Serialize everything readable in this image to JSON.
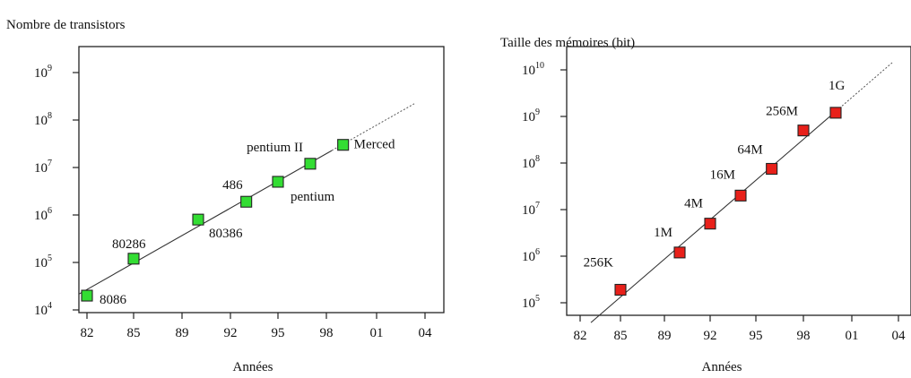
{
  "chart_data": [
    {
      "type": "scatter",
      "title": "Nombre de transistors",
      "xlabel": "Années",
      "ylabel": "",
      "y_scale": "log",
      "x_ticks": [
        "82",
        "85",
        "89",
        "92",
        "95",
        "98",
        "01",
        "04"
      ],
      "y_ticks": [
        {
          "base": "10",
          "exp": "4"
        },
        {
          "base": "10",
          "exp": "5"
        },
        {
          "base": "10",
          "exp": "6"
        },
        {
          "base": "10",
          "exp": "7"
        },
        {
          "base": "10",
          "exp": "8"
        },
        {
          "base": "10",
          "exp": "9"
        }
      ],
      "ylim": [
        10000,
        2000000000
      ],
      "points": [
        {
          "label": "8086",
          "x": 1982,
          "y": 20000
        },
        {
          "label": "80286",
          "x": 1985,
          "y": 120000
        },
        {
          "label": "80386",
          "x": 1989,
          "y": 800000
        },
        {
          "label": "486",
          "x": 1992,
          "y": 1900000
        },
        {
          "label": "pentium",
          "x": 1994,
          "y": 5000000
        },
        {
          "label": "pentium II",
          "x": 1996,
          "y": 12000000
        },
        {
          "label": "Merced",
          "x": 1998,
          "y": 30000000
        }
      ],
      "marker_color": "#33dd33",
      "trend": {
        "solid_to": 1998,
        "dotted_to": 2004
      },
      "grid": false
    },
    {
      "type": "scatter",
      "title": "Taille des mémoires (bit)",
      "xlabel": "Années",
      "ylabel": "",
      "y_scale": "log",
      "x_ticks": [
        "82",
        "85",
        "89",
        "92",
        "95",
        "98",
        "01",
        "04"
      ],
      "y_ticks": [
        {
          "base": "10",
          "exp": "5"
        },
        {
          "base": "10",
          "exp": "6"
        },
        {
          "base": "10",
          "exp": "7"
        },
        {
          "base": "10",
          "exp": "8"
        },
        {
          "base": "10",
          "exp": "9"
        },
        {
          "base": "10",
          "exp": "10"
        }
      ],
      "ylim": [
        100000,
        20000000000
      ],
      "points": [
        {
          "label": "256K",
          "x": 1985,
          "y": 190000
        },
        {
          "label": "1M",
          "x": 1989,
          "y": 1200000
        },
        {
          "label": "4M",
          "x": 1991,
          "y": 5000000
        },
        {
          "label": "16M",
          "x": 1993,
          "y": 20000000
        },
        {
          "label": "64M",
          "x": 1995,
          "y": 75000000
        },
        {
          "label": "256M",
          "x": 1997,
          "y": 500000000
        },
        {
          "label": "1G",
          "x": 1999,
          "y": 1200000000
        }
      ],
      "marker_color": "#e8201a",
      "trend": {
        "solid_to": 1999,
        "dotted_to": 2004
      },
      "grid": false
    }
  ]
}
